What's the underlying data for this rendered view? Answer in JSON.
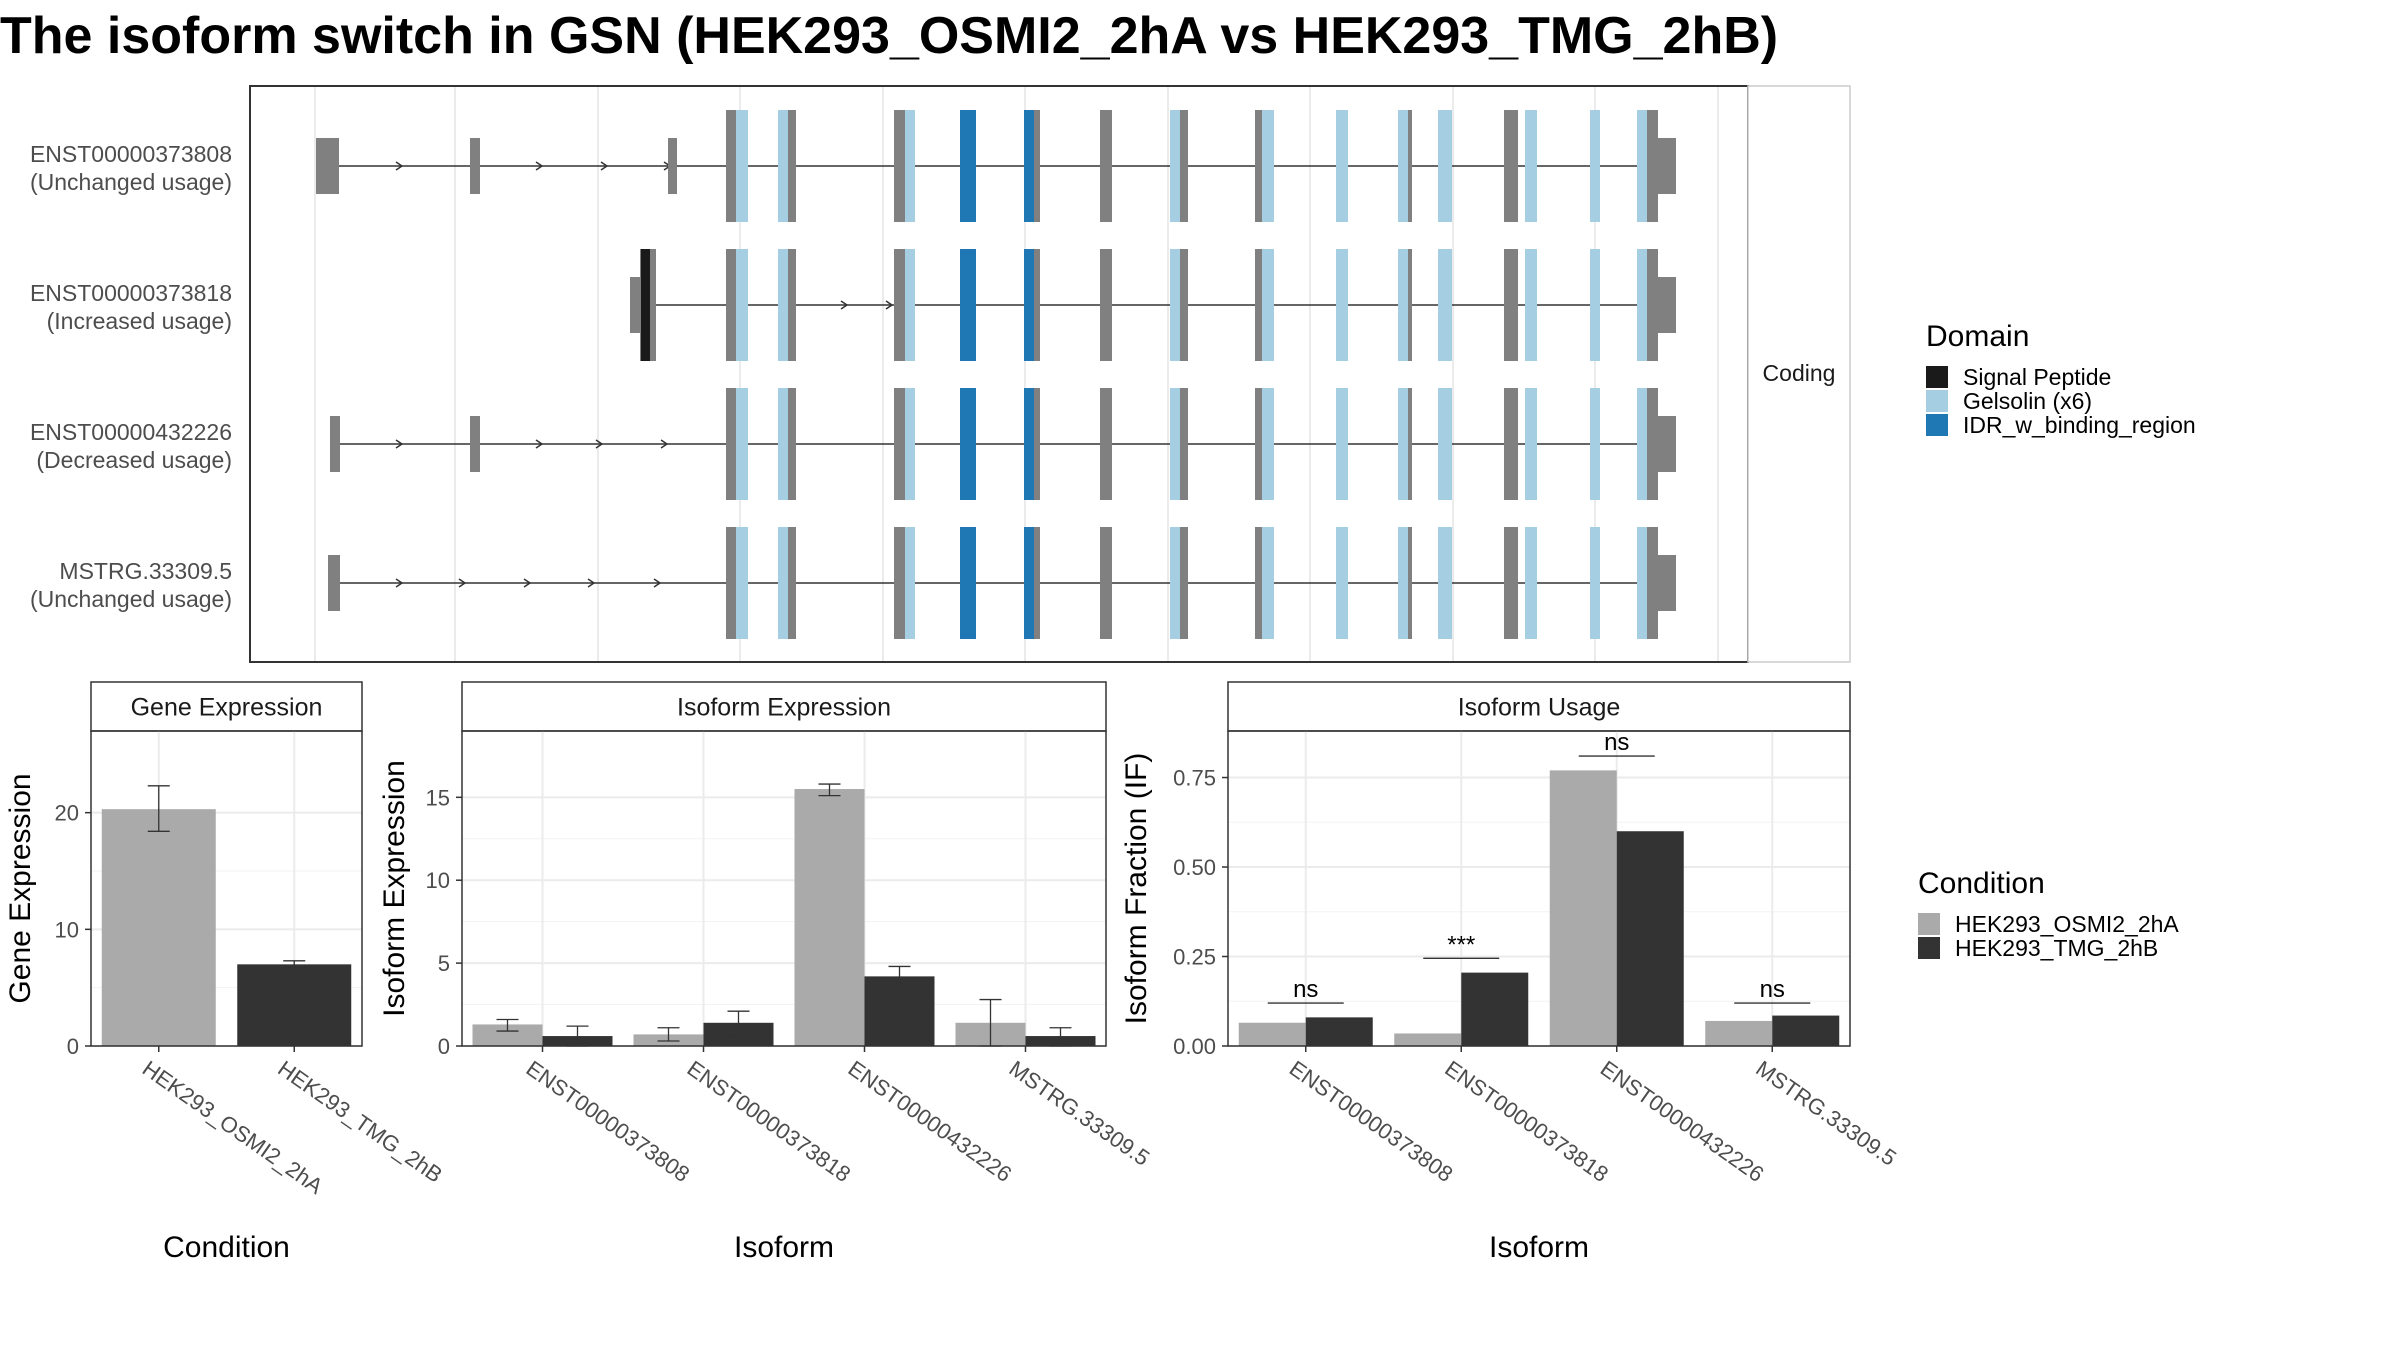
{
  "title": "The isoform switch in GSN (HEK293_OSMI2_2hA vs HEK293_TMG_2hB)",
  "colors": {
    "signal_peptide": "#1a1a1a",
    "gelsolin": "#a6cee3",
    "idr": "#1f78b4",
    "exon": "#808080",
    "cond_a": "#aaaaaa",
    "cond_b": "#333333"
  },
  "transcripts": {
    "strip_label": "Coding",
    "isoforms": [
      {
        "id": "ENST00000373808",
        "usage": "(Unchanged usage)"
      },
      {
        "id": "ENST00000373818",
        "usage": "(Increased usage)"
      },
      {
        "id": "ENST00000432226",
        "usage": "(Decreased usage)"
      },
      {
        "id": "MSTRG.33309.5",
        "usage": "(Unchanged usage)"
      }
    ]
  },
  "domain_legend": {
    "title": "Domain",
    "items": [
      {
        "label": "Signal Peptide",
        "color": "#1a1a1a"
      },
      {
        "label": "Gelsolin (x6)",
        "color": "#a6cee3"
      },
      {
        "label": "IDR_w_binding_region",
        "color": "#1f78b4"
      }
    ]
  },
  "condition_legend": {
    "title": "Condition",
    "items": [
      {
        "label": "HEK293_OSMI2_2hA",
        "color": "#aaaaaa"
      },
      {
        "label": "HEK293_TMG_2hB",
        "color": "#333333"
      }
    ]
  },
  "chart_data": [
    {
      "type": "bar",
      "title": "Gene Expression",
      "xlabel": "Condition",
      "ylabel": "Gene Expression",
      "ylim": [
        0,
        27
      ],
      "yticks": [
        0,
        10,
        20
      ],
      "categories": [
        "HEK293_OSMI2_2hA",
        "HEK293_TMG_2hB"
      ],
      "values": [
        20.3,
        7.0
      ],
      "errors": [
        [
          18.4,
          22.3
        ],
        [
          6.7,
          7.3
        ]
      ]
    },
    {
      "type": "bar",
      "title": "Isoform Expression",
      "xlabel": "Isoform",
      "ylabel": "Isoform Expression",
      "ylim": [
        0,
        19
      ],
      "yticks": [
        0,
        5,
        10,
        15
      ],
      "categories": [
        "ENST00000373808",
        "ENST00000373818",
        "ENST00000432226",
        "MSTRG.33309.5"
      ],
      "series": [
        {
          "name": "HEK293_OSMI2_2hA",
          "values": [
            1.3,
            0.7,
            15.5,
            1.4
          ],
          "errors": [
            [
              0.9,
              1.6
            ],
            [
              0.3,
              1.1
            ],
            [
              15.1,
              15.8
            ],
            [
              0.0,
              2.8
            ]
          ]
        },
        {
          "name": "HEK293_TMG_2hB",
          "values": [
            0.6,
            1.4,
            4.2,
            0.6
          ],
          "errors": [
            [
              0.0,
              1.2
            ],
            [
              0.6,
              2.1
            ],
            [
              3.6,
              4.8
            ],
            [
              0.0,
              1.1
            ]
          ]
        }
      ]
    },
    {
      "type": "bar",
      "title": "Isoform Usage",
      "xlabel": "Isoform",
      "ylabel": "Isoform Fraction (IF)",
      "ylim": [
        0,
        0.88
      ],
      "yticks": [
        0.0,
        0.25,
        0.5,
        0.75
      ],
      "ytick_labels": [
        "0.00",
        "0.25",
        "0.50",
        "0.75"
      ],
      "categories": [
        "ENST00000373808",
        "ENST00000373818",
        "ENST00000432226",
        "MSTRG.33309.5"
      ],
      "series": [
        {
          "name": "HEK293_OSMI2_2hA",
          "values": [
            0.065,
            0.035,
            0.77,
            0.07
          ]
        },
        {
          "name": "HEK293_TMG_2hB",
          "values": [
            0.08,
            0.205,
            0.6,
            0.085
          ]
        }
      ],
      "significance": [
        "ns",
        "***",
        "ns",
        "ns"
      ],
      "significance_y": [
        0.12,
        0.245,
        0.81,
        0.12
      ]
    }
  ]
}
